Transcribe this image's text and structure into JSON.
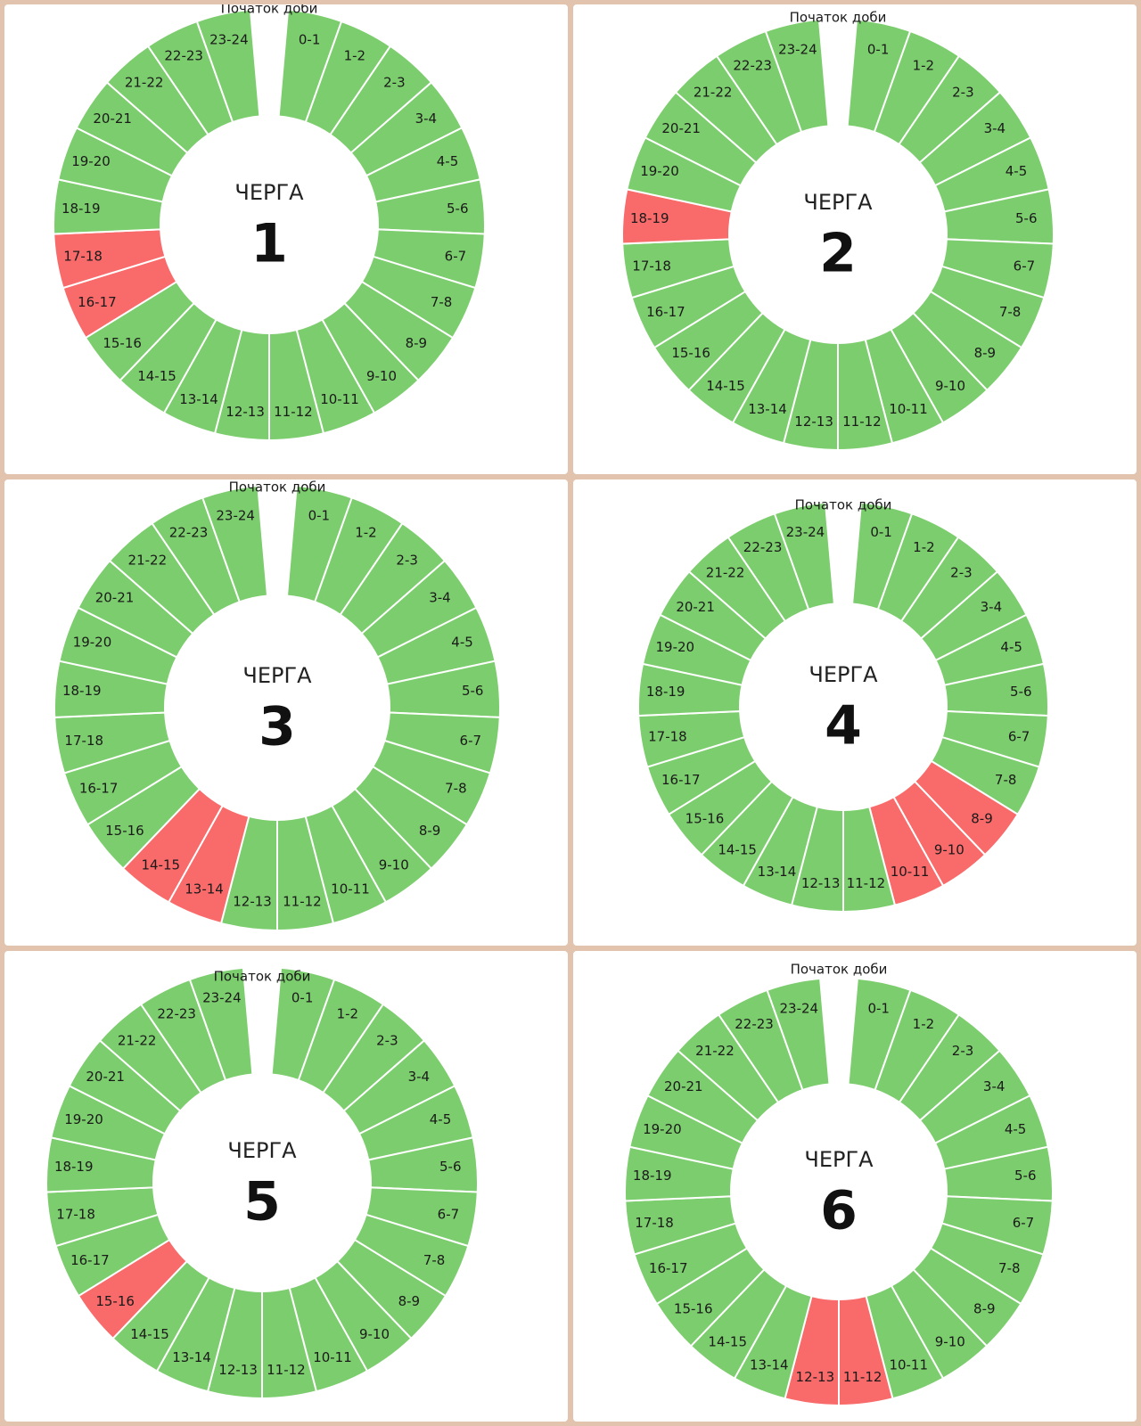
{
  "colors": {
    "on": "#7ccd6d",
    "off": "#f96a6a",
    "separator": "#ffffff",
    "background": "#e2c4ae"
  },
  "chart_data": [
    {
      "type": "donut",
      "title_word": "ЧЕРГА",
      "queue_number": "1",
      "start_label": "Початок доби",
      "categories": [
        "0-1",
        "1-2",
        "2-3",
        "3-4",
        "4-5",
        "5-6",
        "6-7",
        "7-8",
        "8-9",
        "9-10",
        "10-11",
        "11-12",
        "12-13",
        "13-14",
        "14-15",
        "15-16",
        "16-17",
        "17-18",
        "18-19",
        "19-20",
        "20-21",
        "21-22",
        "22-23",
        "23-24"
      ],
      "outage_hours": [
        "16-17",
        "17-18"
      ]
    },
    {
      "type": "donut",
      "title_word": "ЧЕРГА",
      "queue_number": "2",
      "start_label": "Початок доби",
      "categories": [
        "0-1",
        "1-2",
        "2-3",
        "3-4",
        "4-5",
        "5-6",
        "6-7",
        "7-8",
        "8-9",
        "9-10",
        "10-11",
        "11-12",
        "12-13",
        "13-14",
        "14-15",
        "15-16",
        "16-17",
        "17-18",
        "18-19",
        "19-20",
        "20-21",
        "21-22",
        "22-23",
        "23-24"
      ],
      "outage_hours": [
        "18-19"
      ]
    },
    {
      "type": "donut",
      "title_word": "ЧЕРГА",
      "queue_number": "3",
      "start_label": "Початок доби",
      "categories": [
        "0-1",
        "1-2",
        "2-3",
        "3-4",
        "4-5",
        "5-6",
        "6-7",
        "7-8",
        "8-9",
        "9-10",
        "10-11",
        "11-12",
        "12-13",
        "13-14",
        "14-15",
        "15-16",
        "16-17",
        "17-18",
        "18-19",
        "19-20",
        "20-21",
        "21-22",
        "22-23",
        "23-24"
      ],
      "outage_hours": [
        "13-14",
        "14-15"
      ]
    },
    {
      "type": "donut",
      "title_word": "ЧЕРГА",
      "queue_number": "4",
      "start_label": "Початок доби",
      "categories": [
        "0-1",
        "1-2",
        "2-3",
        "3-4",
        "4-5",
        "5-6",
        "6-7",
        "7-8",
        "8-9",
        "9-10",
        "10-11",
        "11-12",
        "12-13",
        "13-14",
        "14-15",
        "15-16",
        "16-17",
        "17-18",
        "18-19",
        "19-20",
        "20-21",
        "21-22",
        "22-23",
        "23-24"
      ],
      "outage_hours": [
        "8-9",
        "9-10",
        "10-11"
      ]
    },
    {
      "type": "donut",
      "title_word": "ЧЕРГА",
      "queue_number": "5",
      "start_label": "Початок доби",
      "categories": [
        "0-1",
        "1-2",
        "2-3",
        "3-4",
        "4-5",
        "5-6",
        "6-7",
        "7-8",
        "8-9",
        "9-10",
        "10-11",
        "11-12",
        "12-13",
        "13-14",
        "14-15",
        "15-16",
        "16-17",
        "17-18",
        "18-19",
        "19-20",
        "20-21",
        "21-22",
        "22-23",
        "23-24"
      ],
      "outage_hours": [
        "15-16"
      ]
    },
    {
      "type": "donut",
      "title_word": "ЧЕРГА",
      "queue_number": "6",
      "start_label": "Початок доби",
      "categories": [
        "0-1",
        "1-2",
        "2-3",
        "3-4",
        "4-5",
        "5-6",
        "6-7",
        "7-8",
        "8-9",
        "9-10",
        "10-11",
        "11-12",
        "12-13",
        "13-14",
        "14-15",
        "15-16",
        "16-17",
        "17-18",
        "18-19",
        "19-20",
        "20-21",
        "21-22",
        "22-23",
        "23-24"
      ],
      "outage_hours": [
        "11-12",
        "12-13"
      ]
    }
  ]
}
